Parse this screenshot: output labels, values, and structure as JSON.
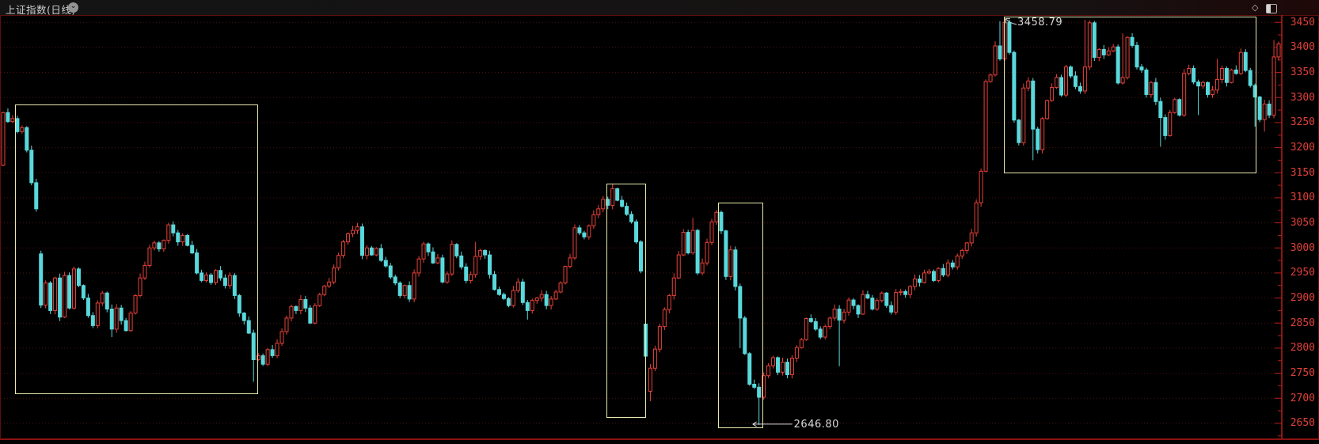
{
  "title_bar": {
    "title": "上证指数(日线)",
    "icons": [
      "chevron-down-circle",
      "diamond",
      "panel"
    ]
  },
  "chart_data": {
    "type": "candlestick",
    "symbol": "上证指数",
    "period": "日线",
    "legend_position": "none",
    "grid": "horizontal-dotted",
    "y_axis": {
      "tick_labels": [
        3450,
        3400,
        3350,
        3300,
        3250,
        3200,
        3150,
        3100,
        3050,
        3000,
        2950,
        2900,
        2850,
        2800,
        2750,
        2700,
        2650
      ],
      "tick_step": 50,
      "ylim": [
        2623,
        3463
      ]
    },
    "closes": [
      3270,
      3252,
      3258,
      3232,
      3240,
      3195,
      3130,
      3078,
      2886,
      2930,
      2875,
      2940,
      2862,
      2945,
      2880,
      2958,
      2925,
      2900,
      2865,
      2845,
      2890,
      2910,
      2878,
      2838,
      2880,
      2855,
      2835,
      2870,
      2905,
      2940,
      2965,
      3000,
      3010,
      2998,
      3015,
      3046,
      3030,
      3012,
      3025,
      3005,
      2990,
      2950,
      2935,
      2946,
      2931,
      2955,
      2940,
      2925,
      2945,
      2905,
      2870,
      2855,
      2830,
      2777,
      2785,
      2768,
      2797,
      2785,
      2810,
      2833,
      2860,
      2883,
      2875,
      2897,
      2880,
      2850,
      2885,
      2907,
      2924,
      2932,
      2960,
      2985,
      3012,
      3028,
      3035,
      3042,
      2985,
      3000,
      2986,
      2999,
      2975,
      2964,
      2942,
      2930,
      2905,
      2925,
      2898,
      2950,
      2978,
      3008,
      2992,
      2970,
      2980,
      2932,
      2948,
      3007,
      2984,
      2962,
      2935,
      2947,
      2983,
      2995,
      2986,
      2947,
      2917,
      2907,
      2899,
      2885,
      2915,
      2932,
      2891,
      2875,
      2895,
      2900,
      2907,
      2885,
      2898,
      2912,
      2930,
      2963,
      2980,
      3040,
      3030,
      3022,
      3044,
      3066,
      3078,
      3097,
      3085,
      3118,
      3095,
      3083,
      3067,
      3052,
      3012,
      2954,
      2784,
      2760,
      2798,
      2843,
      2877,
      2905,
      2940,
      2986,
      3031,
      2990,
      3035,
      2950,
      2970,
      3011,
      3052,
      3071,
      3034,
      2943,
      2996,
      2923,
      2860,
      2789,
      2728,
      2722,
      2702,
      2745,
      2765,
      2781,
      2752,
      2772,
      2747,
      2780,
      2801,
      2817,
      2859,
      2853,
      2838,
      2822,
      2843,
      2860,
      2878,
      2856,
      2872,
      2896,
      2885,
      2868,
      2907,
      2900,
      2878,
      2895,
      2910,
      2885,
      2872,
      2911,
      2913,
      2907,
      2923,
      2938,
      2931,
      2950,
      2953,
      2935,
      2959,
      2946,
      2970,
      2962,
      2984,
      2995,
      3010,
      3030,
      3090,
      3153,
      3332,
      3345,
      3403,
      3377,
      3450,
      3390,
      3255,
      3210,
      3319,
      3333,
      3237,
      3196,
      3258,
      3294,
      3320,
      3340,
      3305,
      3361,
      3343,
      3322,
      3313,
      3361,
      3449,
      3380,
      3396,
      3385,
      3393,
      3401,
      3329,
      3340,
      3420,
      3404,
      3361,
      3355,
      3306,
      3330,
      3292,
      3260,
      3224,
      3270,
      3296,
      3265,
      3348,
      3358,
      3331,
      3323,
      3330,
      3306,
      3315,
      3336,
      3358,
      3330,
      3355,
      3348,
      3390,
      3354,
      3324,
      3301,
      3256,
      3287,
      3265,
      3381,
      3407
    ],
    "open_overrides": {
      "0": 3165,
      "8": 2988,
      "136": 2848,
      "137": 2714
    },
    "high_overrides": {
      "35": 3050,
      "95": 3015,
      "100": 3012,
      "129": 3127,
      "146": 3060,
      "211": 3452,
      "212": 3458.79,
      "229": 3455,
      "237": 3428,
      "257": 3377,
      "269": 3415
    },
    "low_overrides": {
      "23": 2822,
      "53": 2733,
      "111": 2857,
      "137": 2694,
      "156": 2800,
      "160": 2646.8,
      "177": 2764,
      "218": 3175,
      "245": 3202,
      "253": 3265,
      "265": 3242,
      "267": 3232
    },
    "annotations": {
      "high_label": {
        "text": "3458.79",
        "index": 212,
        "price": 3458.79
      },
      "low_label": {
        "text": "2646.80",
        "index": 160,
        "price": 2646.8
      }
    },
    "highlight_boxes": [
      {
        "from_index": 3.0,
        "to_index": 54.2,
        "top_price": 3286,
        "bottom_price": 2711
      },
      {
        "from_index": 128.2,
        "to_index": 136.3,
        "top_price": 3128,
        "bottom_price": 2664
      },
      {
        "from_index": 151.9,
        "to_index": 161.0,
        "top_price": 3090,
        "bottom_price": 2644
      },
      {
        "from_index": 212.3,
        "to_index": 265.4,
        "top_price": 3461,
        "bottom_price": 3152
      }
    ],
    "colors": {
      "up": "#e8423a",
      "down": "#59d9dc",
      "grid": "#4d1111",
      "axis": "#b5201a",
      "label": "#e04038",
      "box": "#e8e8ac",
      "annotation_text": "#d9d9d9"
    }
  }
}
